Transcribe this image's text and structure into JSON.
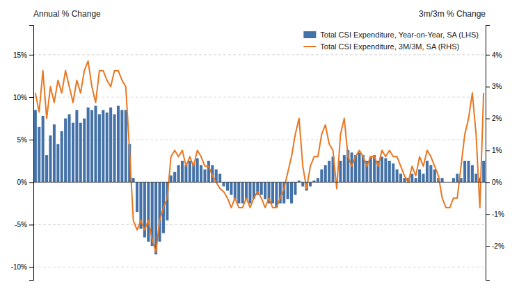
{
  "chart_data": {
    "type": "bar",
    "ylabel": "Annual % Change",
    "y2label": "3m/3m % Change",
    "categories": [
      null,
      null,
      null,
      null,
      null,
      null,
      null,
      null,
      null,
      null,
      null,
      null,
      null,
      null,
      null,
      null,
      null,
      null,
      null,
      null,
      null,
      null,
      null,
      null,
      null,
      null,
      null,
      null,
      null,
      null,
      null,
      null,
      null,
      null,
      null,
      null,
      null,
      null,
      null,
      null,
      null,
      null,
      null,
      null,
      null,
      null,
      null,
      null,
      null,
      null,
      null,
      null,
      null,
      null,
      null,
      null,
      null,
      null,
      null,
      null,
      null,
      null,
      null,
      null,
      null,
      null,
      null,
      null,
      null,
      null,
      null,
      null,
      null,
      null,
      null,
      null,
      null,
      null,
      null,
      null,
      null,
      null,
      null,
      null,
      null,
      null,
      null,
      null,
      null,
      null,
      null,
      null,
      null,
      null,
      null,
      null,
      null,
      null,
      null,
      null,
      null,
      null,
      null,
      null,
      null,
      null,
      null,
      null,
      null,
      null,
      null,
      null,
      null,
      null,
      null,
      null,
      null,
      null,
      null,
      null
    ],
    "series": [
      {
        "name": "Total CSI Expenditure, Year-on-Year, SA (LHS)",
        "type": "bar",
        "color": "#4472a8",
        "values": [
          8.5,
          6.5,
          7.8,
          3.2,
          5.5,
          6.8,
          4.5,
          6.0,
          7.5,
          8.0,
          7.0,
          8.5,
          7.0,
          7.5,
          8.8,
          8.5,
          9.0,
          8.0,
          8.5,
          8.2,
          8.8,
          8.0,
          9.0,
          8.5,
          8.5,
          4.5,
          0.5,
          -3.5,
          -5.5,
          -6.5,
          -7.0,
          -7.5,
          -8.5,
          -7.0,
          -6.0,
          -4.5,
          0.8,
          1.2,
          2.0,
          2.5,
          2.0,
          2.5,
          2.2,
          2.8,
          2.0,
          1.5,
          2.5,
          2.0,
          1.5,
          1.0,
          -0.5,
          -1.0,
          -1.5,
          -2.0,
          -2.5,
          -2.5,
          -2.0,
          -2.5,
          -2.0,
          -1.5,
          -1.5,
          -2.0,
          -2.5,
          -2.5,
          -3.0,
          -2.5,
          -2.5,
          -2.0,
          -2.5,
          -1.5,
          0.2,
          -0.5,
          -1.0,
          -0.5,
          0.2,
          0.5,
          1.5,
          2.0,
          2.5,
          3.0,
          0.2,
          2.5,
          3.2,
          3.8,
          3.5,
          3.2,
          3.5,
          3.2,
          2.5,
          3.0,
          3.2,
          2.5,
          3.0,
          2.8,
          2.5,
          2.2,
          1.5,
          1.0,
          0.5,
          0.5,
          1.0,
          0.5,
          1.5,
          1.0,
          2.5,
          2.0,
          1.5,
          0.5,
          0.5,
          0.0,
          0.0,
          0.5,
          1.0,
          0.5,
          2.5,
          2.5,
          2.0,
          1.0,
          0.5,
          2.5
        ]
      },
      {
        "name": "Total CSI Expenditure, 3M/3M, SA (RHS)",
        "type": "line",
        "color": "#E87722",
        "axis": "y2",
        "values": [
          2.8,
          2.2,
          3.5,
          2.0,
          3.0,
          2.5,
          3.2,
          2.8,
          3.5,
          3.0,
          2.5,
          3.2,
          2.8,
          3.5,
          3.8,
          3.0,
          2.5,
          3.5,
          3.5,
          3.2,
          3.0,
          3.5,
          3.5,
          3.2,
          3.0,
          1.0,
          -1.2,
          -1.5,
          -1.2,
          -1.5,
          -1.2,
          -1.8,
          -2.2,
          -1.2,
          -0.8,
          -0.5,
          0.8,
          1.0,
          0.8,
          1.0,
          0.5,
          0.8,
          0.5,
          1.0,
          0.8,
          0.5,
          0.5,
          0.2,
          0.0,
          -0.2,
          -0.3,
          -0.5,
          -0.8,
          -0.5,
          -0.8,
          -0.8,
          -0.5,
          -0.8,
          -0.5,
          -0.3,
          -0.5,
          -0.8,
          -0.5,
          -0.8,
          -0.8,
          -0.5,
          -0.2,
          0.3,
          0.8,
          1.5,
          2.0,
          0.5,
          -0.2,
          0.5,
          0.8,
          0.8,
          1.5,
          1.8,
          1.2,
          1.0,
          -0.2,
          1.5,
          2.0,
          0.8,
          0.5,
          0.8,
          1.0,
          0.8,
          0.5,
          0.8,
          0.8,
          0.5,
          1.0,
          0.8,
          1.0,
          0.8,
          0.8,
          0.5,
          0.2,
          0.0,
          0.5,
          0.2,
          0.8,
          0.5,
          1.0,
          0.8,
          0.5,
          0.2,
          -0.5,
          -0.8,
          -0.8,
          -0.5,
          -0.5,
          0.5,
          1.5,
          2.0,
          2.8,
          1.5,
          -0.8,
          2.8
        ]
      }
    ],
    "ylim": [
      -11.5,
      18.5
    ],
    "yticks": [
      {
        "value": -10,
        "label": "-10%"
      },
      {
        "value": -5,
        "label": "-5%"
      },
      {
        "value": 0,
        "label": "0%"
      },
      {
        "value": 5,
        "label": "5%"
      },
      {
        "value": 10,
        "label": "10%"
      },
      {
        "value": 15,
        "label": "15%"
      }
    ],
    "y2lim": [
      -3.067,
      4.933
    ],
    "y2ticks": [
      {
        "value": -2,
        "label": "-2%"
      },
      {
        "value": -1,
        "label": "-1%"
      },
      {
        "value": 0,
        "label": "0%"
      },
      {
        "value": 1,
        "label": "1%"
      },
      {
        "value": 2,
        "label": "2%"
      },
      {
        "value": 3,
        "label": "3%"
      },
      {
        "value": 4,
        "label": "4%"
      }
    ],
    "grid": true,
    "legend": "upper right"
  }
}
